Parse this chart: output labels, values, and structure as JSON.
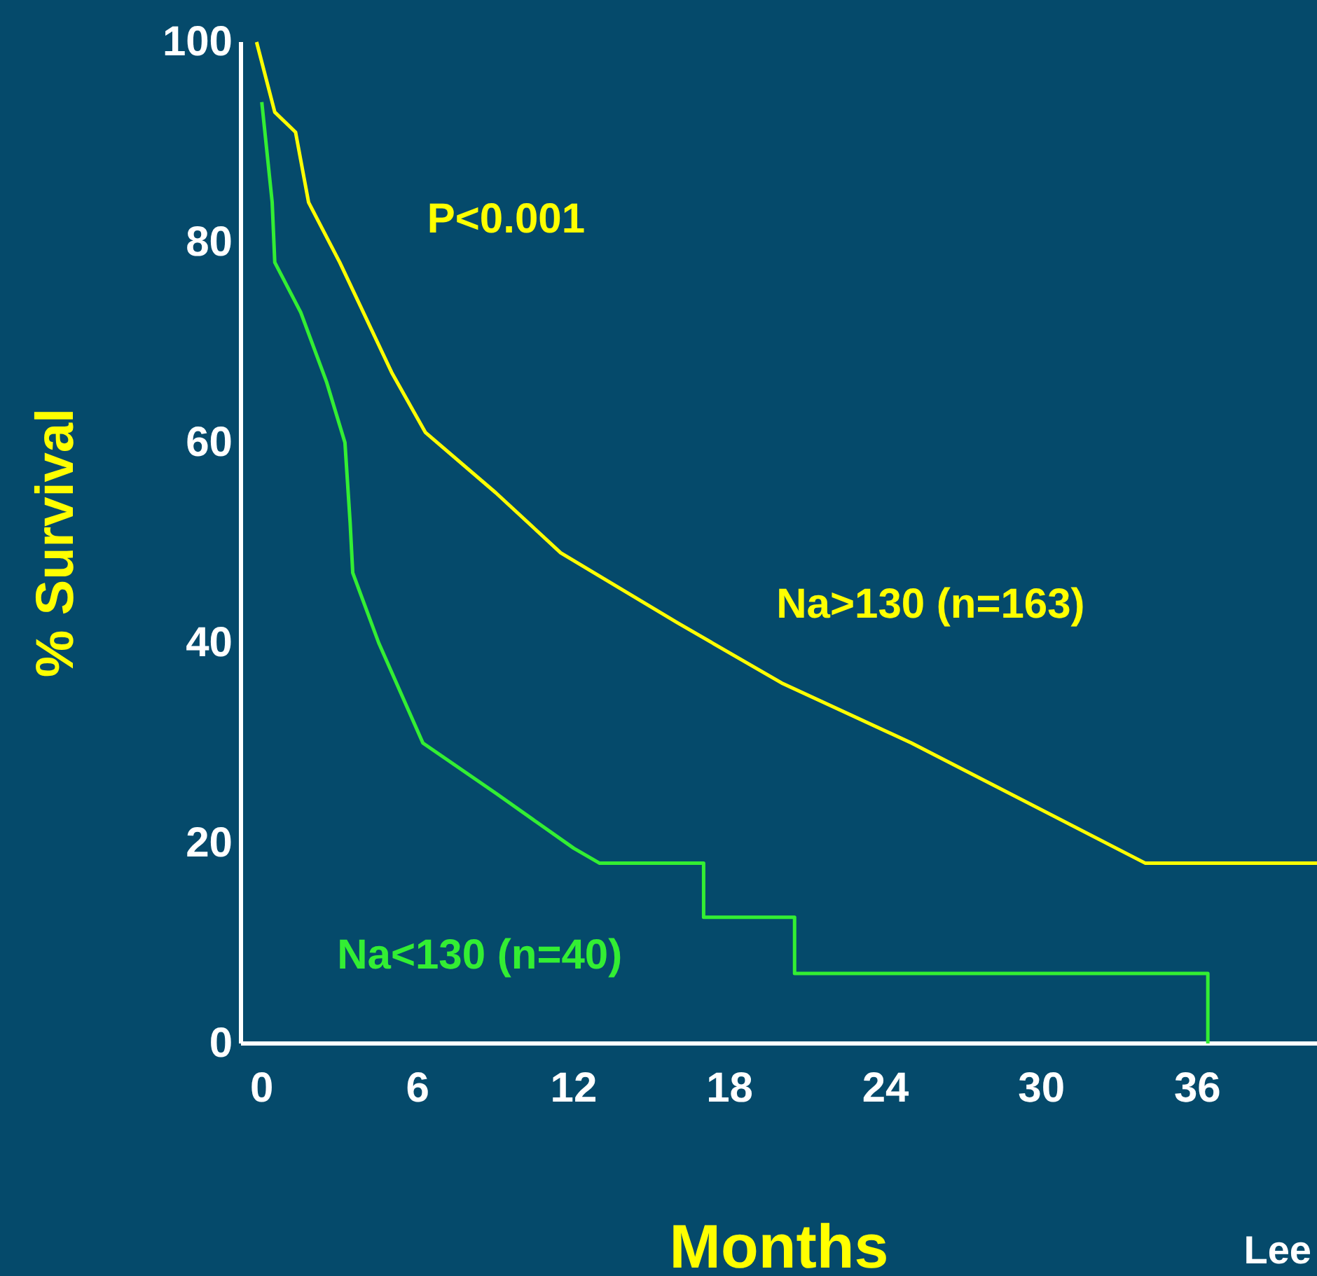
{
  "chart_data": {
    "type": "line",
    "xlabel": "Months",
    "ylabel": "% Survival",
    "xlim": [
      -0.8,
      40.6
    ],
    "ylim": [
      0,
      100
    ],
    "xticks": [
      0,
      6,
      12,
      18,
      24,
      30,
      36
    ],
    "yticks": [
      0,
      20,
      40,
      60,
      80,
      100
    ],
    "grid": false,
    "annotations": [
      "P<0.001",
      "Lee"
    ],
    "series": [
      {
        "name": "Na>130 (n=163)",
        "color": "#ffff00",
        "x": [
          -0.2,
          0.5,
          1.3,
          1.8,
          3,
          5,
          6.3,
          9,
          11.5,
          16,
          20,
          25,
          34,
          40.6
        ],
        "values": [
          100,
          93,
          91,
          84,
          78,
          67,
          61,
          55,
          49,
          42,
          36,
          30,
          18,
          18
        ]
      },
      {
        "name": "Na<130 (n=40)",
        "color": "#33ee33",
        "x": [
          0,
          0.4,
          0.5,
          1.5,
          2.5,
          3.2,
          3.4,
          3.5,
          4.5,
          6.2,
          9,
          12,
          13,
          17,
          17,
          20.5,
          20.5,
          36.4,
          36.4
        ],
        "values": [
          94,
          84,
          78,
          73,
          66,
          60,
          52,
          47,
          40,
          30,
          25,
          19.5,
          18,
          18,
          12.6,
          12.6,
          7,
          7,
          0
        ]
      }
    ]
  }
}
